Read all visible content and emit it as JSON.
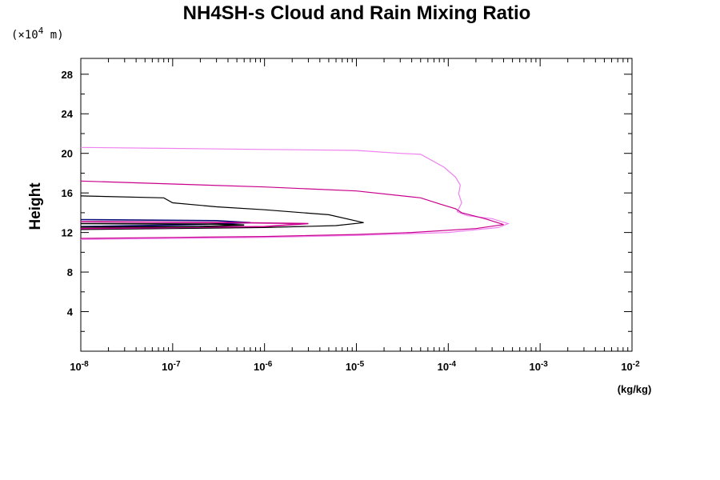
{
  "chart_data": {
    "type": "line",
    "title": "NH4SH-s Cloud and Rain Mixing Ratio",
    "yunit": "(×10",
    "yunit_exp": "4",
    "yunit_suffix": " m)",
    "ylabel": "Height",
    "xlabel": "(kg/kg)",
    "xscale": "log",
    "xlim": [
      1e-08,
      0.01
    ],
    "ylim": [
      0,
      29.6
    ],
    "x_tick_base": "10",
    "x_tick_exponents": [
      "-8",
      "-7",
      "-6",
      "-5",
      "-4",
      "-3",
      "-2"
    ],
    "y_ticks": [
      4,
      8,
      12,
      16,
      20,
      24,
      28
    ],
    "grid": false,
    "series": [
      {
        "color": "#ee82ee",
        "points": [
          [
            1e-08,
            20.6
          ],
          [
            1e-07,
            20.5
          ],
          [
            1e-06,
            20.4
          ],
          [
            1e-05,
            20.3
          ],
          [
            3e-05,
            20.0
          ],
          [
            5e-05,
            19.9
          ],
          [
            9e-05,
            18.6
          ],
          [
            0.00012,
            17.6
          ],
          [
            0.000135,
            16.8
          ],
          [
            0.00013,
            15.9
          ],
          [
            0.00014,
            15.0
          ],
          [
            0.000125,
            14.1
          ],
          [
            0.00016,
            13.7
          ],
          [
            0.0003,
            13.4
          ],
          [
            0.00045,
            12.9
          ],
          [
            0.00035,
            12.5
          ],
          [
            0.0001,
            12.0
          ],
          [
            1e-05,
            11.7
          ],
          [
            1e-06,
            11.5
          ],
          [
            1e-07,
            11.4
          ],
          [
            1e-08,
            11.3
          ]
        ]
      },
      {
        "color": "#c8008c",
        "points": [
          [
            1e-08,
            17.2
          ],
          [
            1e-07,
            16.9
          ],
          [
            1e-06,
            16.6
          ],
          [
            1e-05,
            16.2
          ],
          [
            5e-05,
            15.5
          ],
          [
            8e-05,
            14.9
          ],
          [
            0.00012,
            14.4
          ],
          [
            0.00014,
            14.0
          ],
          [
            0.00025,
            13.4
          ],
          [
            0.0004,
            12.8
          ],
          [
            0.0002,
            12.4
          ],
          [
            4e-05,
            12.0
          ],
          [
            1e-05,
            11.8
          ],
          [
            1e-06,
            11.6
          ],
          [
            1e-07,
            11.5
          ],
          [
            1e-08,
            11.4
          ]
        ]
      },
      {
        "color": "#000000",
        "points": [
          [
            1e-08,
            15.7
          ],
          [
            8e-08,
            15.5
          ],
          [
            1e-07,
            15.0
          ],
          [
            3e-07,
            14.6
          ],
          [
            1e-06,
            14.3
          ],
          [
            5e-06,
            13.8
          ],
          [
            1.2e-05,
            13.0
          ],
          [
            6e-06,
            12.7
          ],
          [
            1e-06,
            12.5
          ],
          [
            1e-07,
            12.4
          ],
          [
            1e-08,
            12.3
          ]
        ]
      },
      {
        "color": "#0a0a78",
        "points": [
          [
            1e-08,
            13.3
          ],
          [
            3e-07,
            13.2
          ],
          [
            7e-07,
            13.0
          ],
          [
            2e-07,
            12.8
          ],
          [
            1e-08,
            12.6
          ]
        ]
      },
      {
        "color": "#c8008c",
        "points": [
          [
            1e-08,
            13.1
          ],
          [
            5e-07,
            13.0
          ],
          [
            3e-06,
            12.9
          ],
          [
            1e-06,
            12.6
          ],
          [
            1e-07,
            12.5
          ],
          [
            1e-08,
            12.4
          ]
        ]
      },
      {
        "color": "#000000",
        "points": [
          [
            1e-08,
            12.9
          ],
          [
            3e-07,
            12.85
          ],
          [
            6e-07,
            12.75
          ],
          [
            2e-07,
            12.6
          ],
          [
            1e-08,
            12.55
          ]
        ]
      }
    ]
  }
}
